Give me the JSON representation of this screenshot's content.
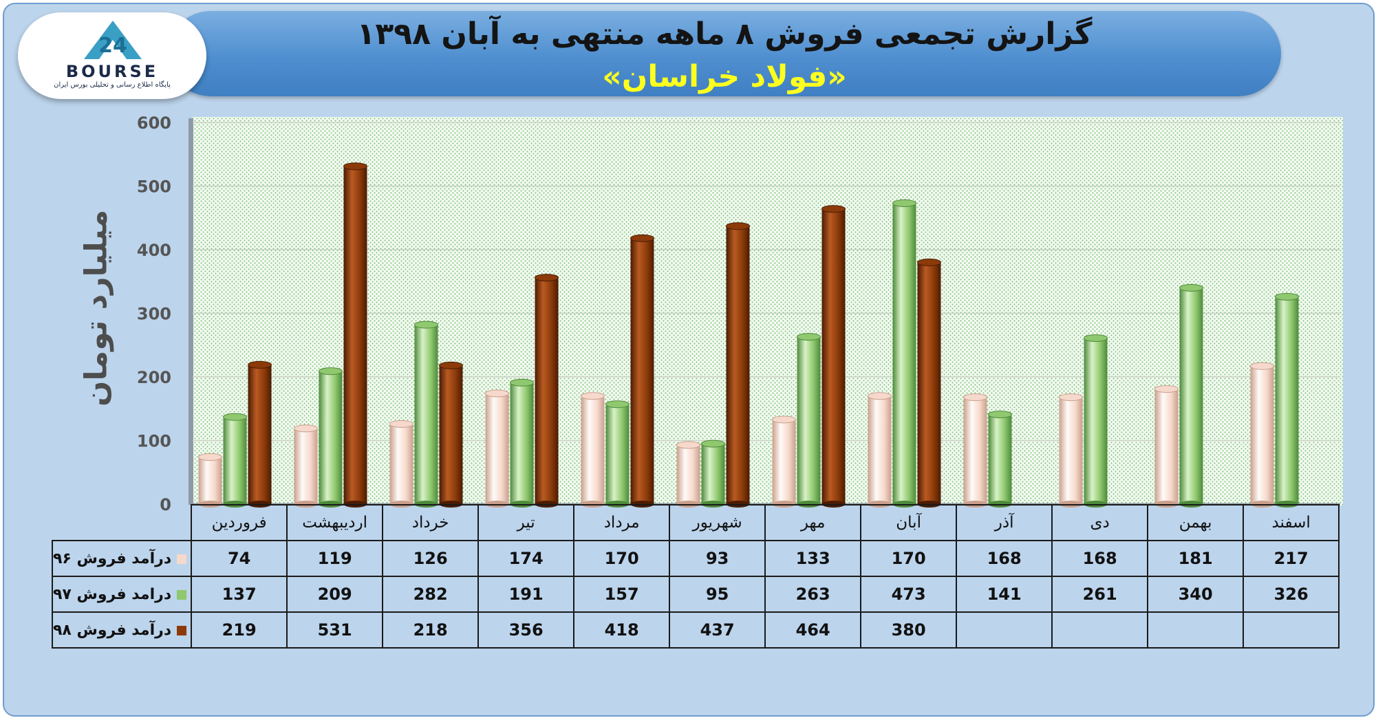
{
  "header": {
    "title": "گزارش تجمعی فروش ۸ ماهه منتهی به آبان ۱۳۹۸",
    "subtitle": "«فولاد خراسان»"
  },
  "logo": {
    "word": "BOURSE",
    "tagline": "پایگاه اطلاع رسانی و تحلیلی بورس ایران",
    "mark_text": "24"
  },
  "chart_data": {
    "type": "bar",
    "title": "گزارش تجمعی فروش ۸ ماهه منتهی به آبان ۱۳۹۸",
    "subtitle": "«فولاد خراسان»",
    "ylabel": "میلیارد تومان",
    "ylim": [
      0,
      600
    ],
    "yticks": [
      "0",
      "100",
      "200",
      "300",
      "400",
      "500",
      "600"
    ],
    "grid": true,
    "categories": [
      "فروردین",
      "اردیبهشت",
      "خرداد",
      "تیر",
      "مرداد",
      "شهریور",
      "مهر",
      "آبان",
      "آذر",
      "دی",
      "بهمن",
      "اسفند"
    ],
    "series": [
      {
        "name": "درآمد فروش ۹۶",
        "color": "#f6d9cc",
        "values": [
          74,
          119,
          126,
          174,
          170,
          93,
          133,
          170,
          168,
          168,
          181,
          217
        ]
      },
      {
        "name": "درامد فروش ۹۷",
        "color": "#8fc86e",
        "values": [
          137,
          209,
          282,
          191,
          157,
          95,
          263,
          473,
          141,
          261,
          340,
          326
        ]
      },
      {
        "name": "درآمد فروش ۹۸",
        "color": "#8c3a0a",
        "values": [
          219,
          531,
          218,
          356,
          418,
          437,
          464,
          380,
          null,
          null,
          null,
          null
        ]
      }
    ]
  }
}
